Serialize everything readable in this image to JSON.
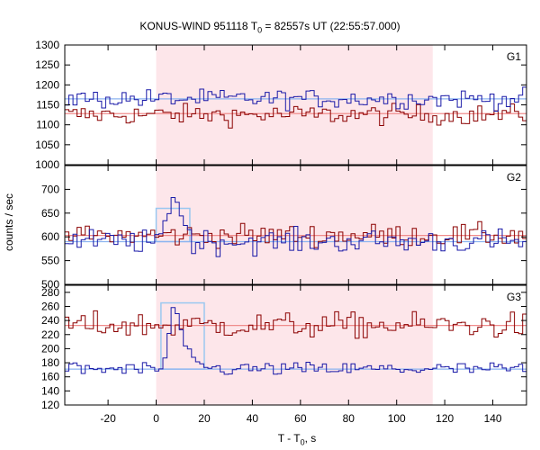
{
  "chart_data": {
    "type": "line",
    "title": {
      "prefix": "KONUS-WIND 951118 T",
      "sub": "0",
      "suffix": " = 82557s UT (22:55:57.000)"
    },
    "xlabel": {
      "prefix": "T - T",
      "sub": "0",
      "suffix": ", s"
    },
    "ylabel": "counts / sec",
    "xlim": [
      -38,
      154
    ],
    "xticks": [
      -20,
      0,
      20,
      40,
      60,
      80,
      100,
      120,
      140
    ],
    "highlight_interval": [
      0,
      115
    ],
    "colors": {
      "series_red": "#8b0000",
      "series_blue": "#1a1aa8",
      "background_red": "#f08c8c",
      "background_blue": "#8cb4f0",
      "shade": "#fde6ea",
      "peak_fill": "#9ac8f0"
    },
    "panels": [
      {
        "name": "G1",
        "ylim": [
          1000,
          1300
        ],
        "yticks": [
          1000,
          1050,
          1100,
          1150,
          1200,
          1250,
          1300
        ],
        "background_levels": {
          "red": 1128,
          "blue": 1165
        },
        "series_red_mean": 1125,
        "series_blue_mean": 1165,
        "noise_red": 18,
        "noise_blue": 17,
        "peak": null
      },
      {
        "name": "G2",
        "ylim": [
          500,
          750
        ],
        "yticks": [
          500,
          550,
          600,
          650,
          700
        ],
        "background_levels": {
          "red": 603,
          "blue": 590
        },
        "series_red_mean": 603,
        "series_blue_mean": 590,
        "noise_red": 17,
        "noise_blue": 18,
        "peak": {
          "t_start": 0,
          "t_peak": 7,
          "t_end": 14,
          "value": 697,
          "fill_top": 660
        }
      },
      {
        "name": "G3",
        "ylim": [
          120,
          290
        ],
        "yticks": [
          120,
          140,
          160,
          180,
          200,
          220,
          240,
          260,
          280
        ],
        "background_levels": {
          "red": 233,
          "blue": 171
        },
        "series_red_mean": 233,
        "series_blue_mean": 171,
        "noise_red": 13,
        "noise_blue": 7,
        "peak": {
          "t_start": 2,
          "t_peak": 7,
          "t_end": 20,
          "value": 272,
          "fill_top": 265
        }
      }
    ]
  }
}
